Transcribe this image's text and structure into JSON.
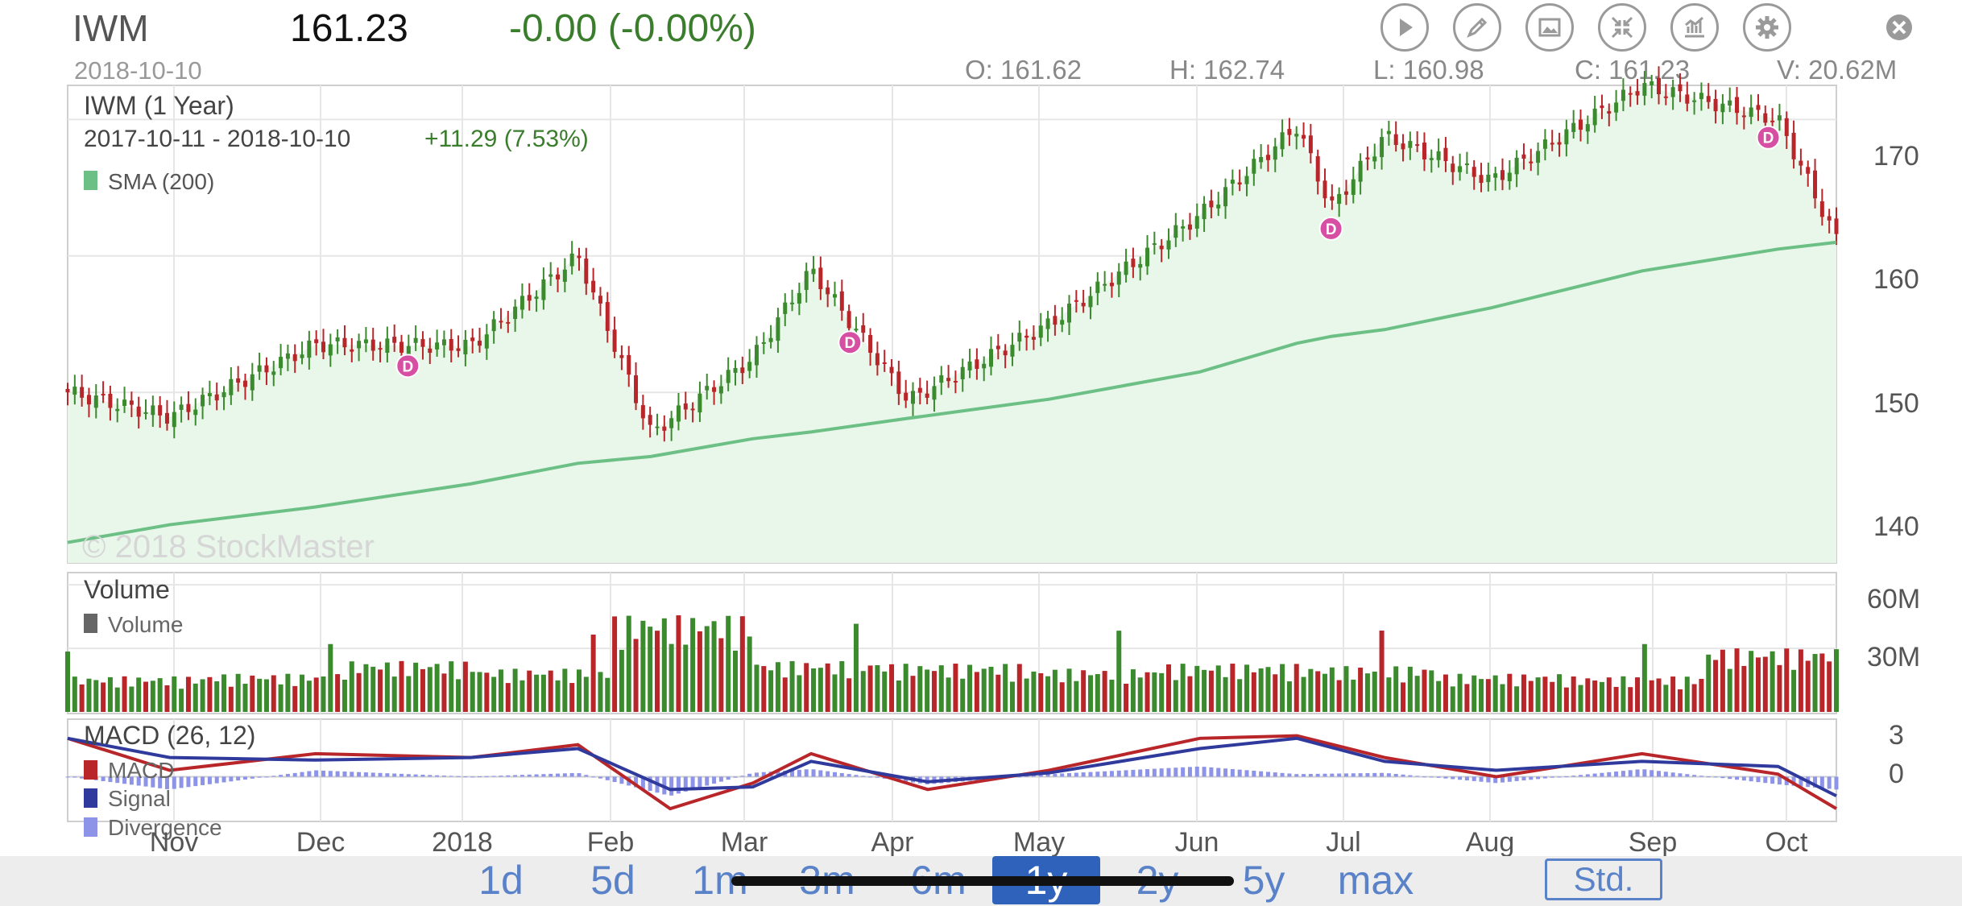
{
  "header": {
    "symbol": "IWM",
    "price": "161.23",
    "change": "-0.00 (-0.00%)",
    "date": "2018-10-10",
    "ohlc": {
      "open": "O: 161.62",
      "high": "H: 162.74",
      "low": "L: 160.98",
      "close": "C: 161.23",
      "volume": "V: 20.62M"
    }
  },
  "toolbar": [
    {
      "name": "play-icon"
    },
    {
      "name": "draw-icon"
    },
    {
      "name": "image-icon"
    },
    {
      "name": "collapse-icon"
    },
    {
      "name": "chart-type-icon"
    },
    {
      "name": "gear-icon"
    }
  ],
  "close_icon": "close-icon",
  "price_panel": {
    "title": "IWM (1 Year)",
    "range": "2017-10-11 - 2018-10-10",
    "range_change": "+11.29 (7.53%)",
    "legend": "SMA (200)",
    "watermark": "© 2018 StockMaster",
    "y_ticks": [
      "170",
      "160",
      "150",
      "140"
    ]
  },
  "volume_panel": {
    "title": "Volume",
    "legend": "Volume",
    "y_ticks": [
      "60M",
      "30M"
    ]
  },
  "macd_panel": {
    "title": "MACD (26, 12)",
    "legend": [
      "MACD",
      "Signal",
      "Divergence"
    ],
    "y_ticks": [
      "3",
      "0"
    ]
  },
  "x_axis_labels": [
    "Nov",
    "Dec",
    "2018",
    "Feb",
    "Mar",
    "Apr",
    "May",
    "Jun",
    "Jul",
    "Aug",
    "Sep",
    "Oct"
  ],
  "periods": [
    "1d",
    "5d",
    "1m",
    "3m",
    "6m",
    "1y",
    "2y",
    "5y",
    "max"
  ],
  "active_period": "1y",
  "std_button": "Std.",
  "colors": {
    "up": "#3c8a2e",
    "down": "#b8262a",
    "sma": "#6cbf85",
    "macd": "#b8262a",
    "signal": "#2f3a9c",
    "divergence": "#8d93e6",
    "dividend": "#d64fa3",
    "change": "#3a7d2c",
    "period_active": "#2f62ba"
  },
  "chart_data": [
    {
      "type": "line",
      "title": "IWM (1 Year)",
      "x": [
        "2017-10-11",
        "2017-11-01",
        "2017-12-01",
        "2018-01-02",
        "2018-01-24",
        "2018-02-08",
        "2018-03-01",
        "2018-03-13",
        "2018-04-02",
        "2018-05-01",
        "2018-06-01",
        "2018-06-21",
        "2018-06-28",
        "2018-07-09",
        "2018-07-31",
        "2018-08-31",
        "2018-09-28",
        "2018-10-10"
      ],
      "series": [
        {
          "name": "",
          "values": [
            150.0,
            148.2,
            153.5,
            153.4,
            160.0,
            147.0,
            152.5,
            159.0,
            149.4,
            155.0,
            163.0,
            169.5,
            163.5,
            168.8,
            165.5,
            172.5,
            170.0,
            161.2
          ]
        },
        {
          "name": "SMA (200)",
          "values": [
            139.0,
            140.3,
            141.6,
            143.3,
            144.8,
            145.3,
            146.6,
            147.1,
            148.1,
            149.5,
            151.5,
            153.6,
            154.1,
            154.6,
            156.2,
            158.9,
            160.5,
            161.0
          ]
        }
      ],
      "ylim": [
        137.5,
        172.5
      ],
      "dividends": [
        "2017-12-20",
        "2018-03-21",
        "2018-06-28",
        "2018-09-26"
      ]
    },
    {
      "type": "bar",
      "title": "Volume",
      "x": [
        "2017-10",
        "2017-11",
        "2017-12",
        "2018-01",
        "2018-02",
        "2018-03",
        "2018-04",
        "2018-05",
        "2018-06",
        "2018-07",
        "2018-08",
        "2018-09",
        "2018-10"
      ],
      "values": [
        14,
        15,
        20,
        17,
        38,
        20,
        19,
        17,
        19,
        18,
        15,
        14,
        25
      ],
      "ylabel": "Volume (M)",
      "ylim": [
        0,
        65
      ]
    },
    {
      "type": "line",
      "title": "MACD (26, 12)",
      "x": [
        "2017-10-11",
        "2017-11-01",
        "2017-12-01",
        "2018-01-02",
        "2018-01-24",
        "2018-02-12",
        "2018-03-01",
        "2018-03-13",
        "2018-04-06",
        "2018-05-01",
        "2018-06-01",
        "2018-06-21",
        "2018-07-09",
        "2018-08-01",
        "2018-08-31",
        "2018-09-28",
        "2018-10-10"
      ],
      "series": [
        {
          "name": "MACD",
          "values": [
            3.0,
            0.5,
            1.8,
            1.5,
            2.5,
            -2.5,
            -0.5,
            1.8,
            -1.0,
            0.5,
            3.0,
            3.2,
            1.5,
            0.0,
            1.8,
            0.2,
            -2.5
          ]
        },
        {
          "name": "Signal",
          "values": [
            3.0,
            1.5,
            1.3,
            1.5,
            2.2,
            -1.0,
            -0.8,
            1.2,
            -0.4,
            0.3,
            2.2,
            3.0,
            1.2,
            0.5,
            1.2,
            0.8,
            -1.5
          ]
        },
        {
          "name": "Divergence",
          "values": [
            0.0,
            -1.0,
            0.5,
            0.0,
            0.3,
            -1.5,
            0.3,
            0.6,
            -0.6,
            0.2,
            0.8,
            0.2,
            0.3,
            -0.5,
            0.6,
            -0.6,
            -1.0
          ]
        }
      ],
      "ylim": [
        -3.5,
        4.5
      ]
    }
  ]
}
